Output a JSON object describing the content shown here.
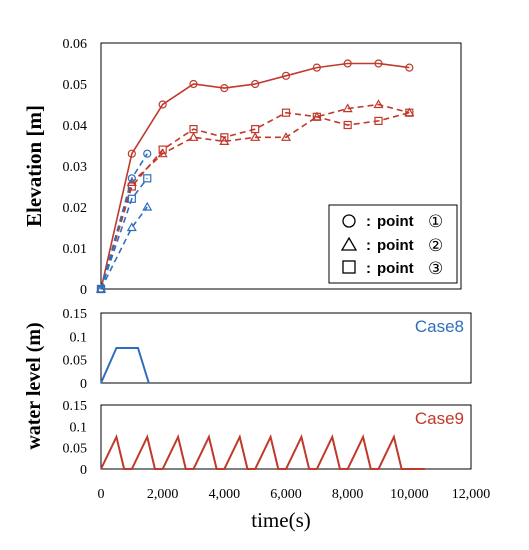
{
  "chart_data": [
    {
      "type": "line",
      "ylabel": "Elevation [m]",
      "ylim": [
        0,
        0.06
      ],
      "yticks": [
        "0.06",
        "0.05",
        "0.04",
        "0.03",
        "0.02",
        "0.01",
        "0"
      ],
      "xlim": [
        0,
        12000
      ],
      "legend": {
        "placement": "bottom-right",
        "entries": [
          {
            "marker": "circle",
            "label": "point",
            "number": "①"
          },
          {
            "marker": "triangle",
            "label": "point",
            "number": "②"
          },
          {
            "marker": "square",
            "label": "point",
            "number": "③"
          }
        ]
      },
      "series": [
        {
          "case": "Case9",
          "point": 1,
          "style": "solid",
          "marker": "circle",
          "color": "#c0392b",
          "x": [
            0,
            1000,
            2000,
            3000,
            4000,
            5000,
            6000,
            7000,
            8000,
            9000,
            10000
          ],
          "y": [
            0,
            0.033,
            0.045,
            0.05,
            0.049,
            0.05,
            0.052,
            0.054,
            0.055,
            0.055,
            0.054
          ]
        },
        {
          "case": "Case9",
          "point": 2,
          "style": "dashed",
          "marker": "triangle",
          "color": "#c0392b",
          "x": [
            0,
            1000,
            2000,
            3000,
            4000,
            5000,
            6000,
            7000,
            8000,
            9000,
            10000
          ],
          "y": [
            0,
            0.026,
            0.033,
            0.037,
            0.036,
            0.037,
            0.037,
            0.042,
            0.044,
            0.045,
            0.043
          ]
        },
        {
          "case": "Case9",
          "point": 3,
          "style": "dashed",
          "marker": "square",
          "color": "#c0392b",
          "x": [
            0,
            1000,
            2000,
            3000,
            4000,
            5000,
            6000,
            7000,
            8000,
            9000,
            10000
          ],
          "y": [
            0,
            0.025,
            0.034,
            0.039,
            0.037,
            0.039,
            0.043,
            0.042,
            0.04,
            0.041,
            0.043
          ]
        },
        {
          "case": "Case8",
          "point": 1,
          "style": "dashed",
          "marker": "circle",
          "color": "#2e6fbd",
          "x": [
            0,
            1000,
            1500
          ],
          "y": [
            0,
            0.027,
            0.033
          ]
        },
        {
          "case": "Case8",
          "point": 2,
          "style": "dashed",
          "marker": "triangle",
          "color": "#2e6fbd",
          "x": [
            0,
            1000,
            1500
          ],
          "y": [
            0,
            0.015,
            0.02
          ]
        },
        {
          "case": "Case8",
          "point": 3,
          "style": "dashed",
          "marker": "square",
          "color": "#2e6fbd",
          "x": [
            0,
            1000,
            1500
          ],
          "y": [
            0,
            0.022,
            0.027
          ]
        }
      ]
    },
    {
      "type": "line",
      "case": "Case8",
      "color": "#2e6fbd",
      "ylim": [
        0,
        0.15
      ],
      "yticks": [
        "0.15",
        "0.1",
        "0.05",
        "0"
      ],
      "xlim": [
        0,
        12000
      ],
      "series": [
        {
          "name": "Case8",
          "x": [
            0,
            500,
            1200,
            1550
          ],
          "y": [
            0,
            0.075,
            0.075,
            0
          ]
        }
      ]
    },
    {
      "type": "line",
      "case": "Case9",
      "color": "#c0392b",
      "ylim": [
        0,
        0.15
      ],
      "yticks": [
        "0.15",
        "0.1",
        "0.05",
        "0"
      ],
      "xlim": [
        0,
        12000
      ],
      "series": [
        {
          "name": "Case9",
          "x": [
            0,
            500,
            750,
            1000,
            1500,
            1750,
            2000,
            2500,
            2750,
            3000,
            3500,
            3750,
            4000,
            4500,
            4750,
            5000,
            5500,
            5750,
            6000,
            6500,
            6750,
            7000,
            7500,
            7750,
            8000,
            8500,
            8750,
            9000,
            9500,
            9750,
            10000,
            10500
          ],
          "y": [
            0,
            0.075,
            0,
            0,
            0.075,
            0,
            0,
            0.075,
            0,
            0,
            0.075,
            0,
            0,
            0.075,
            0,
            0,
            0.075,
            0,
            0,
            0.075,
            0,
            0,
            0.075,
            0,
            0,
            0.075,
            0,
            0,
            0.075,
            0,
            0,
            0
          ]
        }
      ]
    }
  ],
  "shared": {
    "water_level_label": "water level (m)",
    "xlabel": "time(s)",
    "xticks": [
      "0",
      "2,000",
      "4,000",
      "6,000",
      "8,000",
      "10,000",
      "12,000"
    ],
    "xtick_values": [
      0,
      2000,
      4000,
      6000,
      8000,
      10000,
      12000
    ]
  }
}
